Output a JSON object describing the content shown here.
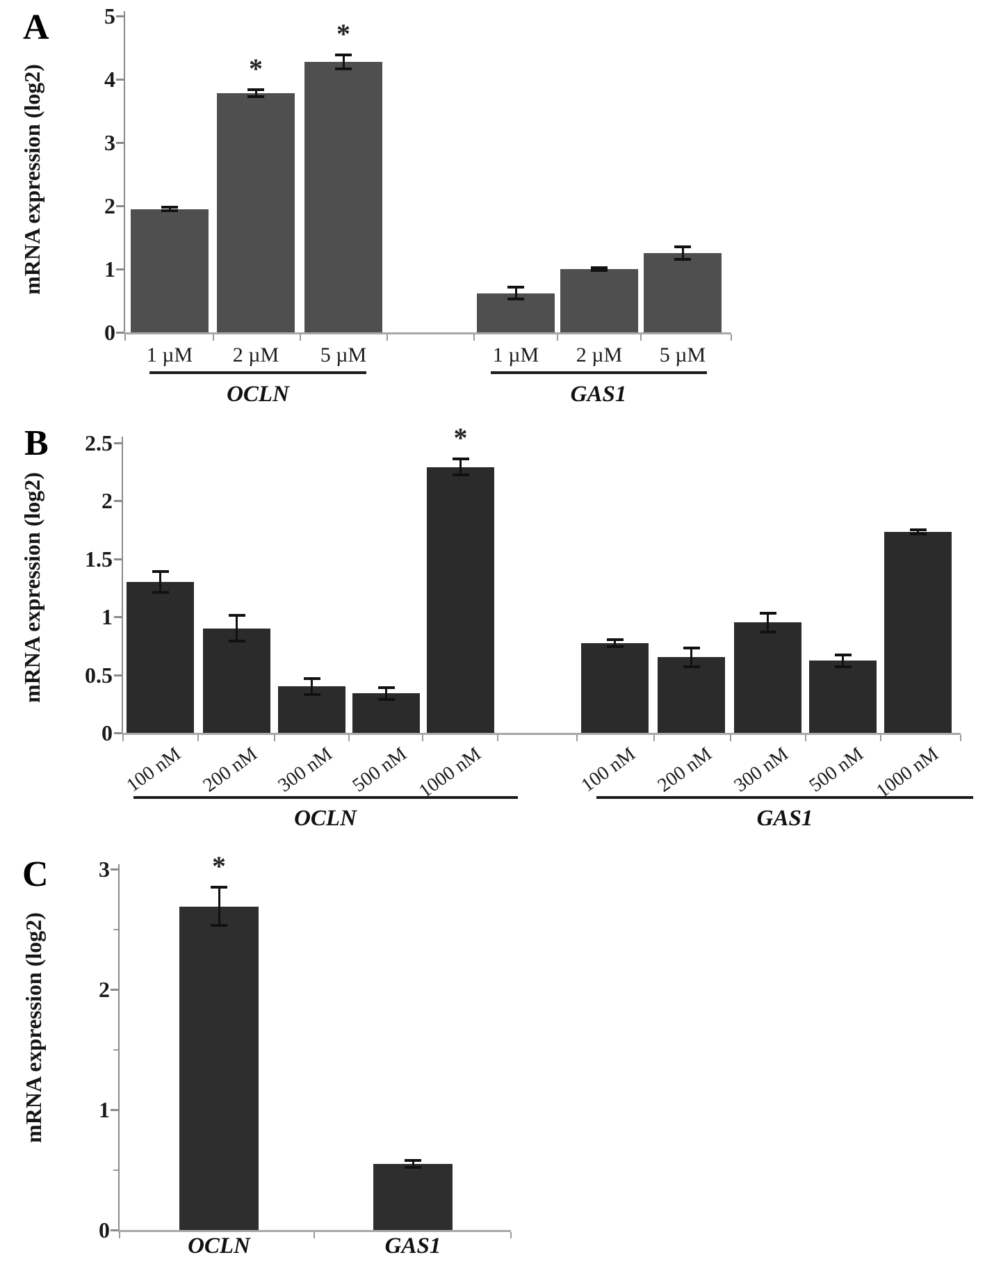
{
  "figure": {
    "shared_ylabel": "mRNA expression (log2)",
    "significance_marker": "*",
    "colors": {
      "panel_a_bar": "#4f4f4f",
      "panel_b_bar": "#2b2b2b",
      "panel_c_bar": "#2e2e2e",
      "axis": "#8a8a8a",
      "baseline": "#a8a8a8",
      "error_bar": "#111111",
      "text": "#1a1a1a",
      "background": "#ffffff"
    }
  },
  "chart_data": [
    {
      "id": "A",
      "type": "bar",
      "panel_label": "A",
      "ylabel": "mRNA expression (log2)",
      "ylim": [
        0,
        5
      ],
      "yticks": [
        0,
        1,
        2,
        3,
        4,
        5
      ],
      "minor_yticks": [],
      "grid": false,
      "legend": "none",
      "bar_color": "#4f4f4f",
      "groups": [
        {
          "name": "OCLN",
          "categories": [
            "1 µM",
            "2 µM",
            "5 µM"
          ],
          "values": [
            1.95,
            3.78,
            4.27
          ],
          "errors": [
            0.03,
            0.06,
            0.11
          ],
          "significant": [
            false,
            true,
            true
          ]
        },
        {
          "name": "GAS1",
          "categories": [
            "1 µM",
            "2 µM",
            "5 µM"
          ],
          "values": [
            0.62,
            1.0,
            1.25
          ],
          "errors": [
            0.09,
            0.02,
            0.1
          ],
          "significant": [
            false,
            false,
            false
          ]
        }
      ]
    },
    {
      "id": "B",
      "type": "bar",
      "panel_label": "B",
      "ylabel": "mRNA expression (log2)",
      "ylim": [
        0,
        2.5
      ],
      "yticks": [
        0,
        0.5,
        1,
        1.5,
        2,
        2.5
      ],
      "minor_yticks": [],
      "grid": false,
      "legend": "none",
      "bar_color": "#2b2b2b",
      "groups": [
        {
          "name": "OCLN",
          "categories": [
            "100 nM",
            "200 nM",
            "300 nM",
            "500 nM",
            "1000 nM"
          ],
          "values": [
            1.3,
            0.9,
            0.4,
            0.34,
            2.29
          ],
          "errors": [
            0.09,
            0.11,
            0.07,
            0.05,
            0.07
          ],
          "significant": [
            false,
            false,
            false,
            false,
            true
          ]
        },
        {
          "name": "GAS1",
          "categories": [
            "100 nM",
            "200 nM",
            "300 nM",
            "500 nM",
            "1000 nM"
          ],
          "values": [
            0.77,
            0.65,
            0.95,
            0.62,
            1.73
          ],
          "errors": [
            0.03,
            0.08,
            0.08,
            0.05,
            0.02
          ],
          "significant": [
            false,
            false,
            false,
            false,
            false
          ]
        }
      ]
    },
    {
      "id": "C",
      "type": "bar",
      "panel_label": "C",
      "ylabel": "mRNA expression (log2)",
      "ylim": [
        0,
        3
      ],
      "yticks": [
        0,
        1,
        2,
        3
      ],
      "minor_yticks": [
        0.5,
        1.5,
        2.5
      ],
      "grid": false,
      "legend": "none",
      "bar_color": "#2e2e2e",
      "groups": [
        {
          "name": "OCLN",
          "categories": [
            ""
          ],
          "values": [
            2.69
          ],
          "errors": [
            0.16
          ],
          "significant": [
            true
          ]
        },
        {
          "name": "GAS1",
          "categories": [
            ""
          ],
          "values": [
            0.55
          ],
          "errors": [
            0.03
          ],
          "significant": [
            false
          ]
        }
      ]
    }
  ]
}
